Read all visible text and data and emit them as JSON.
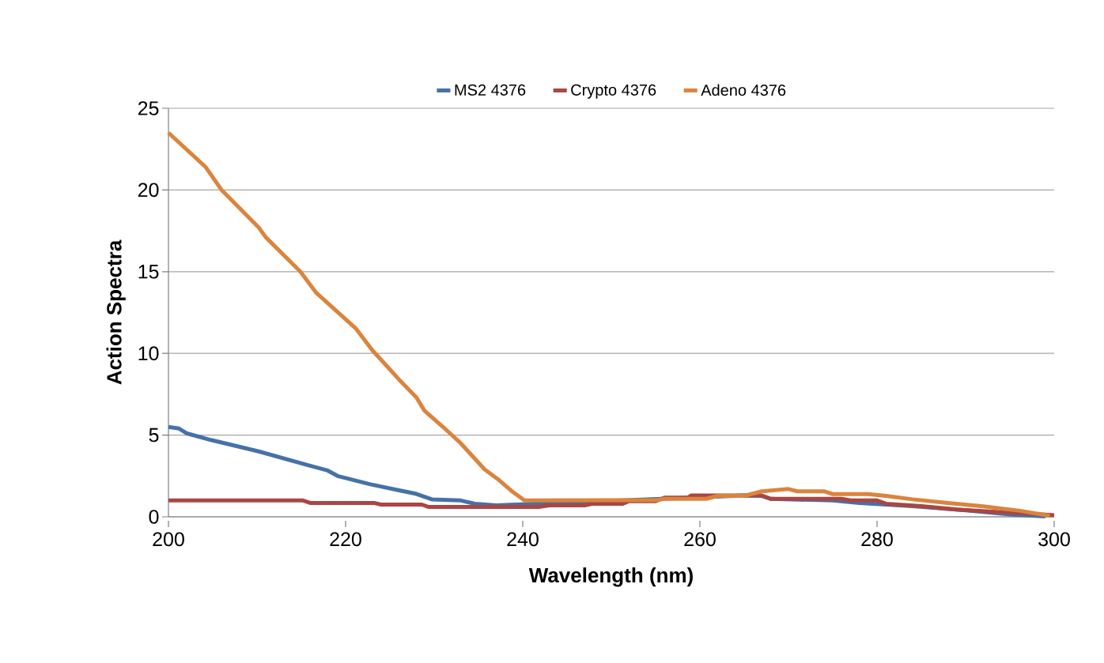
{
  "chart_data": {
    "type": "line",
    "xlabel": "Wavelength (nm)",
    "ylabel": "Action Spectra",
    "xlim": [
      200,
      300
    ],
    "xticks": [
      200,
      220,
      240,
      260,
      280,
      300
    ],
    "ylim": [
      0,
      25
    ],
    "yticks": [
      0,
      5,
      10,
      15,
      20,
      25
    ],
    "grid": "y",
    "legend": "top",
    "marker": "none",
    "line_style": "solid",
    "series": [
      {
        "name": "MS2 4376",
        "color": "#4572a7",
        "x": [
          200,
          201.2,
          202.1,
          204.8,
          210.2,
          215.5,
          217.9,
          219.1,
          222.7,
          228,
          229.8,
          233,
          234.6,
          237,
          240,
          250,
          256,
          260,
          265,
          267,
          268,
          275,
          278,
          284,
          290,
          295,
          299
        ],
        "values": [
          5.5,
          5.4,
          5.1,
          4.7,
          4.0,
          3.2,
          2.85,
          2.5,
          2.0,
          1.4,
          1.06,
          1.0,
          0.8,
          0.7,
          null,
          null,
          null,
          null,
          1.3,
          1.28,
          1.1,
          1.0,
          0.85,
          0.65,
          0.4,
          0.15,
          0.02
        ]
      },
      {
        "name": "Crypto 4376",
        "color": "#aa4643",
        "x": [
          200,
          215.2,
          216,
          223.2,
          224,
          228.6,
          229.4,
          241.8,
          243,
          247,
          247.8,
          251.3,
          252,
          255,
          256,
          258.6,
          259,
          267,
          268,
          276,
          277,
          280,
          281,
          285,
          289,
          293,
          297,
          300
        ],
        "values": [
          1.0,
          1.0,
          0.85,
          0.85,
          0.75,
          0.75,
          0.6,
          0.6,
          0.7,
          0.7,
          0.8,
          0.8,
          0.96,
          0.96,
          1.17,
          1.17,
          1.3,
          1.3,
          1.1,
          1.1,
          1.0,
          1.0,
          0.8,
          0.65,
          0.45,
          0.32,
          0.21,
          0.1
        ]
      },
      {
        "name": "Adeno 4376",
        "color": "#db843d",
        "x": [
          200,
          204.2,
          206,
          210.2,
          211,
          214.9,
          216.7,
          221.2,
          223,
          224.7,
          226.2,
          228,
          228.9,
          231,
          233,
          235.7,
          237.2,
          238.7,
          240.2,
          255,
          256,
          260.7,
          262,
          265,
          267,
          270,
          271,
          274,
          275,
          279,
          281,
          284,
          288,
          292,
          296,
          299.5
        ],
        "values": [
          23.5,
          21.4,
          20.0,
          17.7,
          17.1,
          15.0,
          13.7,
          11.5,
          10.2,
          9.2,
          8.3,
          7.3,
          6.5,
          5.5,
          4.5,
          2.9,
          2.3,
          1.6,
          1.0,
          1.02,
          1.1,
          1.1,
          1.28,
          1.28,
          1.56,
          1.7,
          1.56,
          1.56,
          1.39,
          1.39,
          1.28,
          1.07,
          0.85,
          0.64,
          0.38,
          0.06
        ]
      }
    ]
  }
}
